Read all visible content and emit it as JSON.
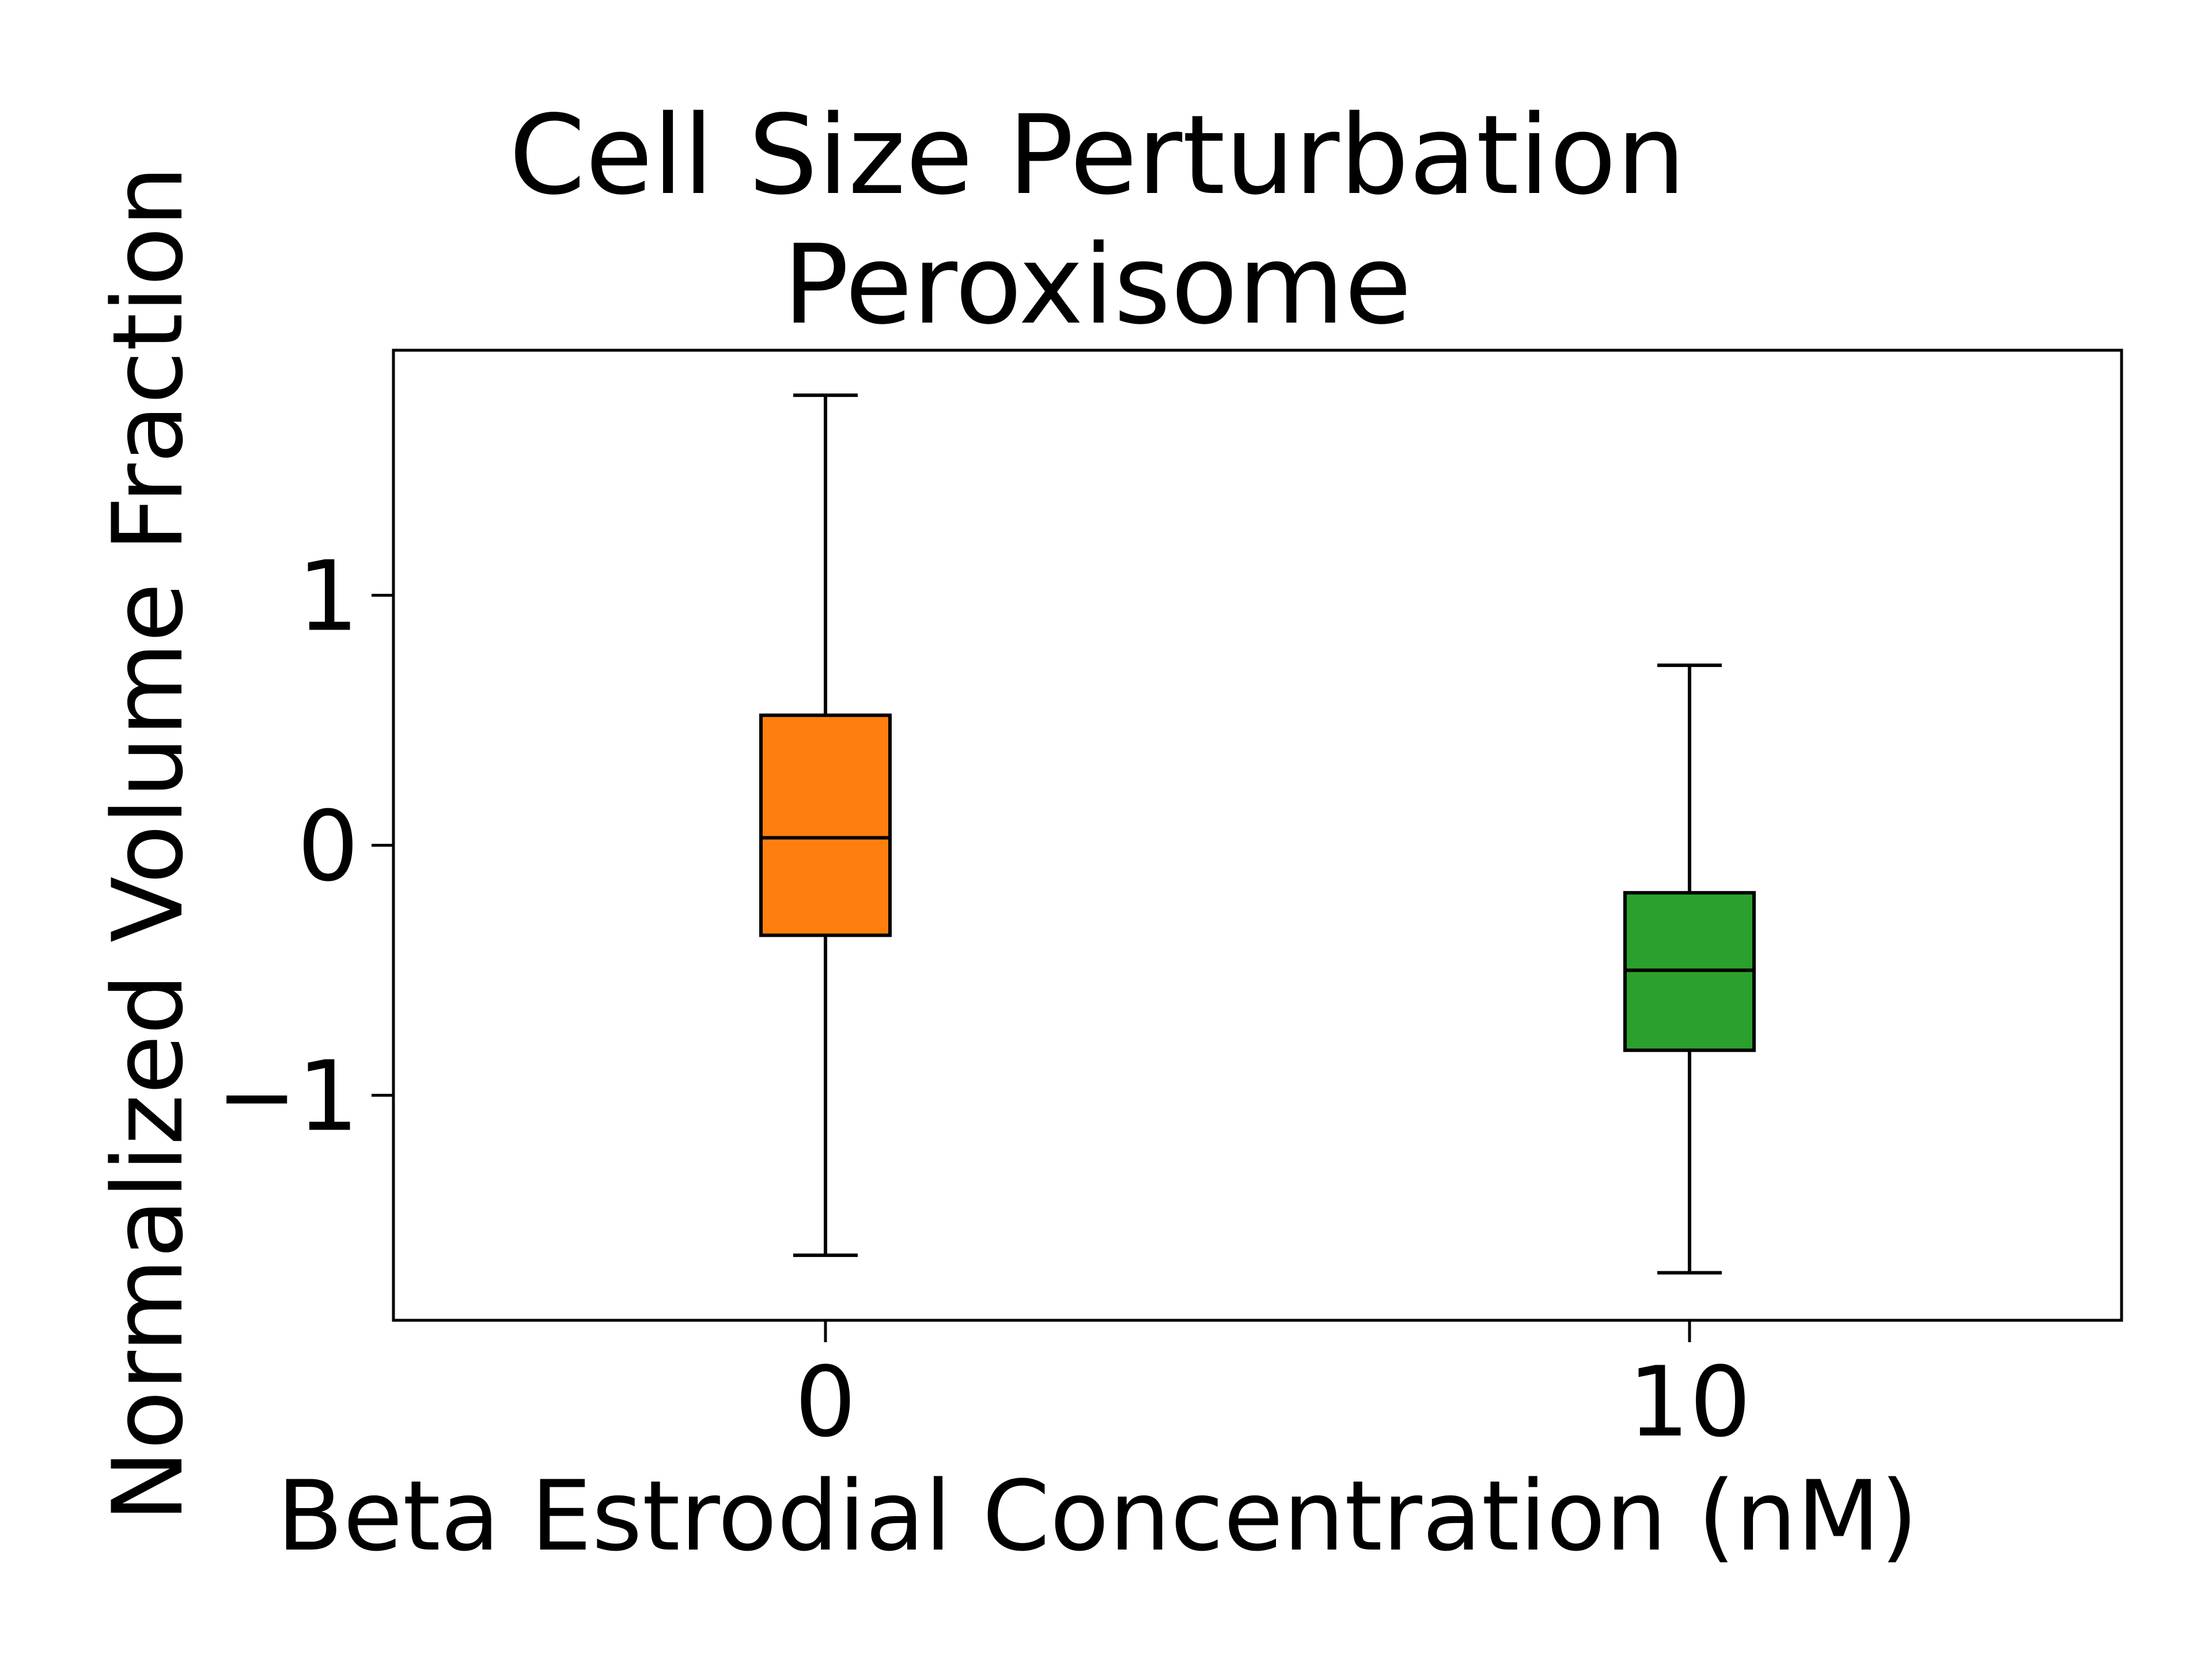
{
  "chart_data": {
    "type": "box",
    "title_lines": [
      "Cell Size Perturbation",
      "Peroxisome"
    ],
    "xlabel": "Beta Estrodial Concentration (nM)",
    "ylabel": "Normalized Volume Fraction",
    "categories": [
      "0",
      "10"
    ],
    "ylim": [
      -1.9,
      1.98
    ],
    "yticks": [
      -1,
      0,
      1
    ],
    "ytick_labels": [
      "−1",
      "0",
      "1"
    ],
    "grid": false,
    "legend": "none",
    "boxes": [
      {
        "category": "0",
        "color": "#ff7f0e",
        "whisker_low": -1.64,
        "q1": -0.36,
        "median": 0.03,
        "q3": 0.52,
        "whisker_high": 1.8
      },
      {
        "category": "10",
        "color": "#2ca02c",
        "whisker_low": -1.71,
        "q1": -0.82,
        "median": -0.5,
        "q3": -0.19,
        "whisker_high": 0.72
      }
    ]
  }
}
